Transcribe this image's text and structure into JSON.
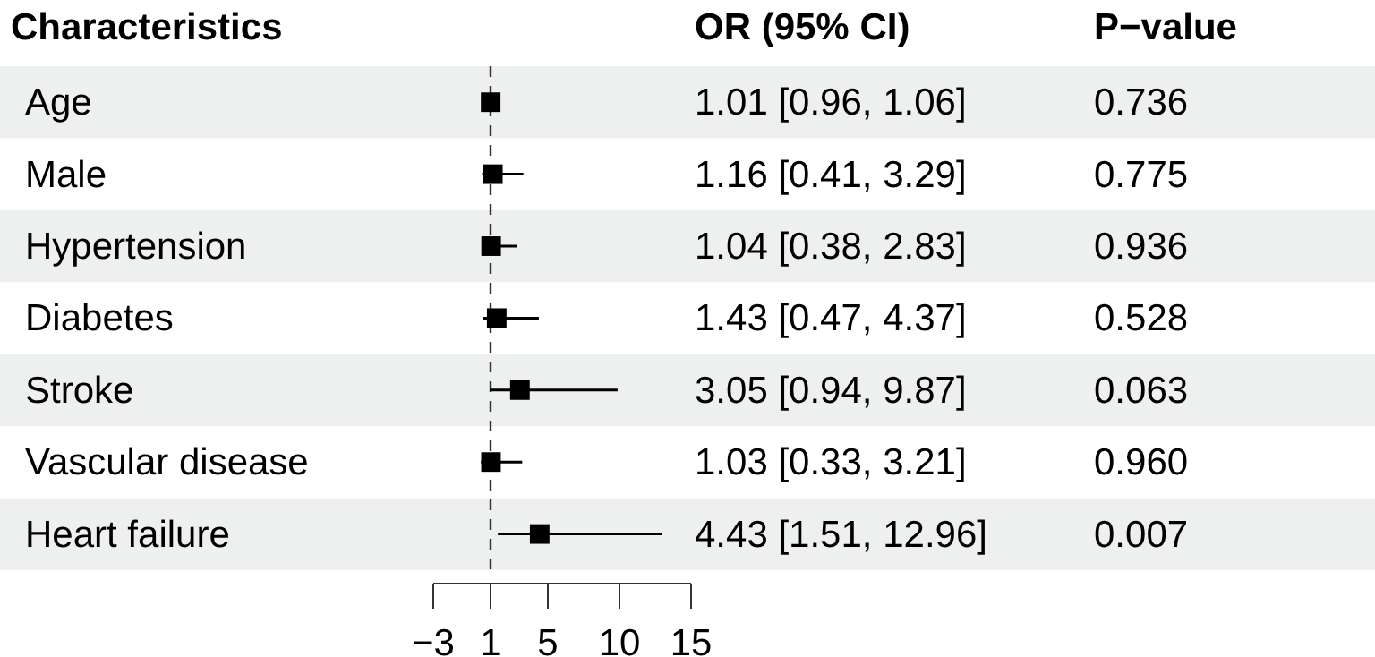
{
  "chart_data": {
    "type": "scatter",
    "orientation": "horizontal",
    "ylabel": "Characteristics",
    "categories": [
      "Age",
      "Male",
      "Hypertension",
      "Diabetes",
      "Stroke",
      "Vascular disease",
      "Heart failure"
    ],
    "values": [
      1.01,
      1.16,
      1.04,
      1.43,
      3.05,
      1.03,
      4.43
    ],
    "errors": [
      [
        0.96,
        1.06
      ],
      [
        0.41,
        3.29
      ],
      [
        0.38,
        2.83
      ],
      [
        0.47,
        4.37
      ],
      [
        0.94,
        9.87
      ],
      [
        0.33,
        3.21
      ],
      [
        1.51,
        12.96
      ]
    ],
    "annotations": [
      "OR (95% CI)",
      "P−value",
      "0.736",
      "0.775",
      "0.936",
      "0.528",
      "0.063",
      "0.960",
      "0.007",
      "1.01 [0.96, 1.06]",
      "1.16 [0.41, 3.29]",
      "1.04 [0.38, 2.83]",
      "1.43 [0.47, 4.37]",
      "3.05 [0.94, 9.87]",
      "1.03 [0.33, 3.21]",
      "4.43 [1.51, 12.96]"
    ],
    "color": "#000000",
    "marker": "square",
    "xlim": [
      -3,
      15
    ],
    "xticks": [
      {
        "value": -3,
        "label": "−3"
      },
      1,
      5,
      10,
      15
    ],
    "tick_labels": "x",
    "ref_lines": [
      {
        "axis": "x",
        "value": 1,
        "line_style": "dashed"
      }
    ]
  }
}
